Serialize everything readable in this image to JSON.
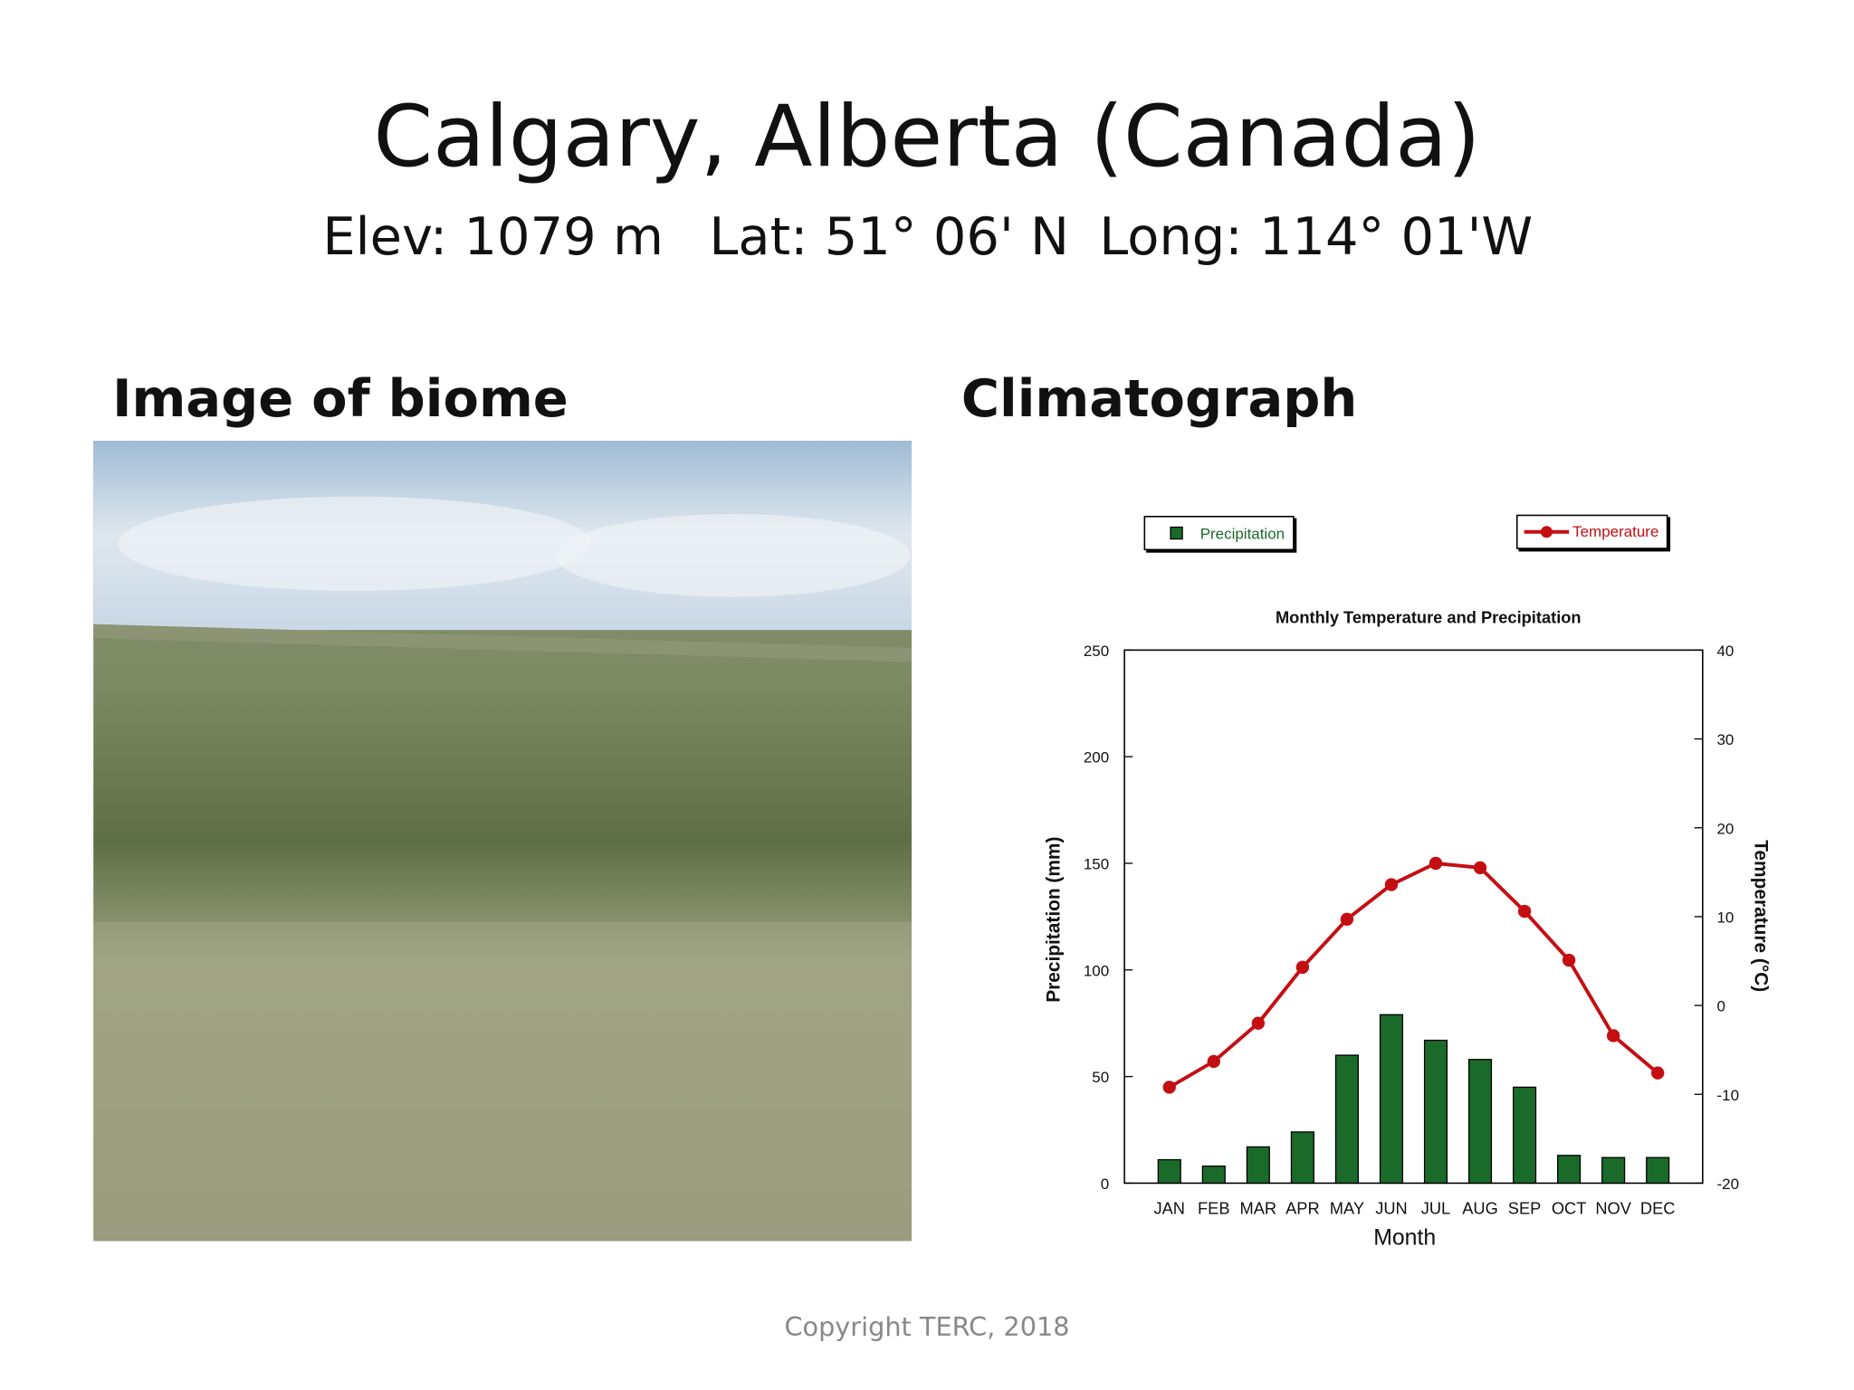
{
  "slide": {
    "title": "Calgary, Alberta (Canada)",
    "elevation": "Elev: 1079 m",
    "latitude": "Lat: 51° 06' N",
    "longitude": "Long: 114° 01'W",
    "image_heading": "Image of biome",
    "chart_heading": "Climatograph",
    "footer": "Copyright TERC, 2018"
  },
  "chart_data": {
    "type": "combo",
    "title": "Monthly Temperature and Precipitation",
    "x_label": "Month",
    "y_label": "Precipitation (mm)",
    "y2_label": "Temperature (°C)",
    "categories": [
      "JAN",
      "FEB",
      "MAR",
      "APR",
      "MAY",
      "JUN",
      "JUL",
      "AUG",
      "SEP",
      "OCT",
      "NOV",
      "DEC"
    ],
    "series": [
      {
        "name": "Precipitation",
        "type": "bar",
        "color": "#1a6b2a",
        "values": [
          11,
          8,
          17,
          24,
          60,
          79,
          67,
          58,
          45,
          13,
          12,
          12
        ]
      },
      {
        "name": "Temperature",
        "type": "line",
        "axis": "y2",
        "color": "#c40f12",
        "values": [
          -9.2,
          -6.3,
          -2.0,
          4.3,
          9.7,
          13.6,
          16.0,
          15.5,
          10.6,
          5.1,
          -3.4,
          -7.6
        ]
      }
    ],
    "ylim": [
      0,
      250
    ],
    "yticks": [
      0,
      50,
      100,
      150,
      200,
      250
    ],
    "y2lim": [
      -20,
      40
    ],
    "y2ticks": [
      -20,
      -10,
      0,
      10,
      20,
      30,
      40
    ]
  }
}
